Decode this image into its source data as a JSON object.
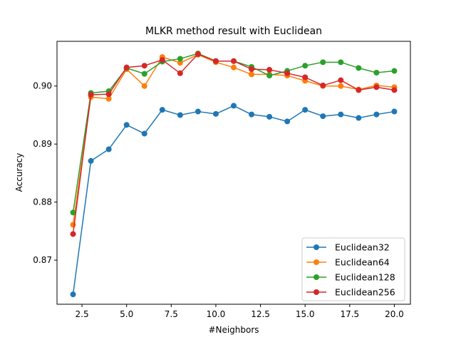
{
  "chart_data": {
    "type": "line",
    "title": "MLKR method result with Euclidean",
    "xlabel": "#Neighbors",
    "ylabel": "Accuracy",
    "xlim": [
      1.1,
      20.9
    ],
    "ylim": [
      0.8624,
      0.9077
    ],
    "x_ticks": [
      2.5,
      5.0,
      7.5,
      10.0,
      12.5,
      15.0,
      17.5,
      20.0
    ],
    "x_tick_labels": [
      "2.5",
      "5.0",
      "7.5",
      "10.0",
      "12.5",
      "15.0",
      "17.5",
      "20.0"
    ],
    "y_ticks": [
      0.87,
      0.88,
      0.89,
      0.9
    ],
    "y_tick_labels": [
      "0.87",
      "0.88",
      "0.89",
      "0.90"
    ],
    "grid": false,
    "legend_position": "lower-right",
    "x": [
      2,
      3,
      4,
      5,
      6,
      7,
      8,
      9,
      10,
      11,
      12,
      13,
      14,
      15,
      16,
      17,
      18,
      19,
      20
    ],
    "series": [
      {
        "name": "Euclidean32",
        "color": "#1f77b4",
        "values": [
          0.8641,
          0.8871,
          0.8891,
          0.8933,
          0.8918,
          0.8959,
          0.895,
          0.8956,
          0.8952,
          0.8966,
          0.8951,
          0.8947,
          0.8939,
          0.8959,
          0.8948,
          0.8951,
          0.8945,
          0.8951,
          0.8956
        ]
      },
      {
        "name": "Euclidean64",
        "color": "#ff7f0e",
        "values": [
          0.8761,
          0.8981,
          0.8978,
          0.9029,
          0.9,
          0.905,
          0.904,
          0.9054,
          0.9041,
          0.9032,
          0.902,
          0.902,
          0.9018,
          0.9009,
          0.9,
          0.9,
          0.8994,
          0.9001,
          0.8998
        ]
      },
      {
        "name": "Euclidean128",
        "color": "#2ca02c",
        "values": [
          0.8782,
          0.8988,
          0.8991,
          0.9031,
          0.9021,
          0.9042,
          0.9047,
          0.9056,
          0.9043,
          0.9043,
          0.9033,
          0.9018,
          0.9026,
          0.9035,
          0.9041,
          0.9041,
          0.9031,
          0.9023,
          0.9026
        ]
      },
      {
        "name": "Euclidean256",
        "color": "#d62728",
        "values": [
          0.8745,
          0.8985,
          0.8986,
          0.9032,
          0.9035,
          0.9045,
          0.9022,
          0.9055,
          0.9043,
          0.9043,
          0.9029,
          0.9028,
          0.9022,
          0.9015,
          0.9001,
          0.901,
          0.8993,
          0.8998,
          0.8993
        ]
      }
    ]
  }
}
